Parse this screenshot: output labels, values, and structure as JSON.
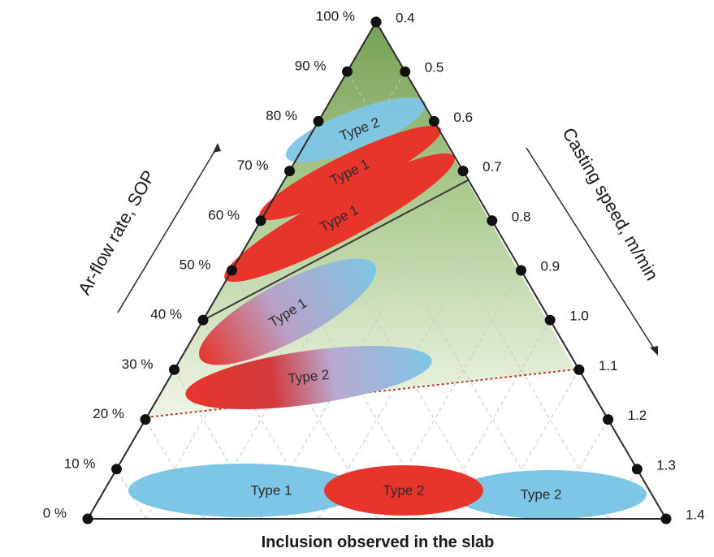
{
  "diagram": {
    "left_axis": {
      "title": "Ar-flow rate, SOP",
      "ticks": [
        "0 %",
        "10 %",
        "20 %",
        "30 %",
        "40 %",
        "50 %",
        "60 %",
        "70 %",
        "80 %",
        "90 %",
        "100 %"
      ]
    },
    "right_axis": {
      "title": "Casting speed, m/min",
      "ticks": [
        "0.4",
        "0.5",
        "0.6",
        "0.7",
        "0.8",
        "0.9",
        "1.0",
        "1.1",
        "1.2",
        "1.3",
        "1.4"
      ]
    },
    "bottom_title": "Inclusion observed in the slab",
    "regions": [
      {
        "label": "Type 2",
        "fill": "blue"
      },
      {
        "label": "Type 1",
        "fill": "red"
      },
      {
        "label": "Type 1",
        "fill": "red"
      },
      {
        "label": "Type 1",
        "fill": "red-blue"
      },
      {
        "label": "Type 2",
        "fill": "red-blue"
      },
      {
        "label": "Type 1",
        "fill": "blue"
      },
      {
        "label": "Type 2",
        "fill": "red"
      },
      {
        "label": "Type 2",
        "fill": "blue"
      }
    ],
    "colors": {
      "green_zone": "#7fa85a",
      "type1_red": "#e8352b",
      "type2_blue": "#7ec6e6",
      "boundary_red": "#c0392b"
    }
  }
}
